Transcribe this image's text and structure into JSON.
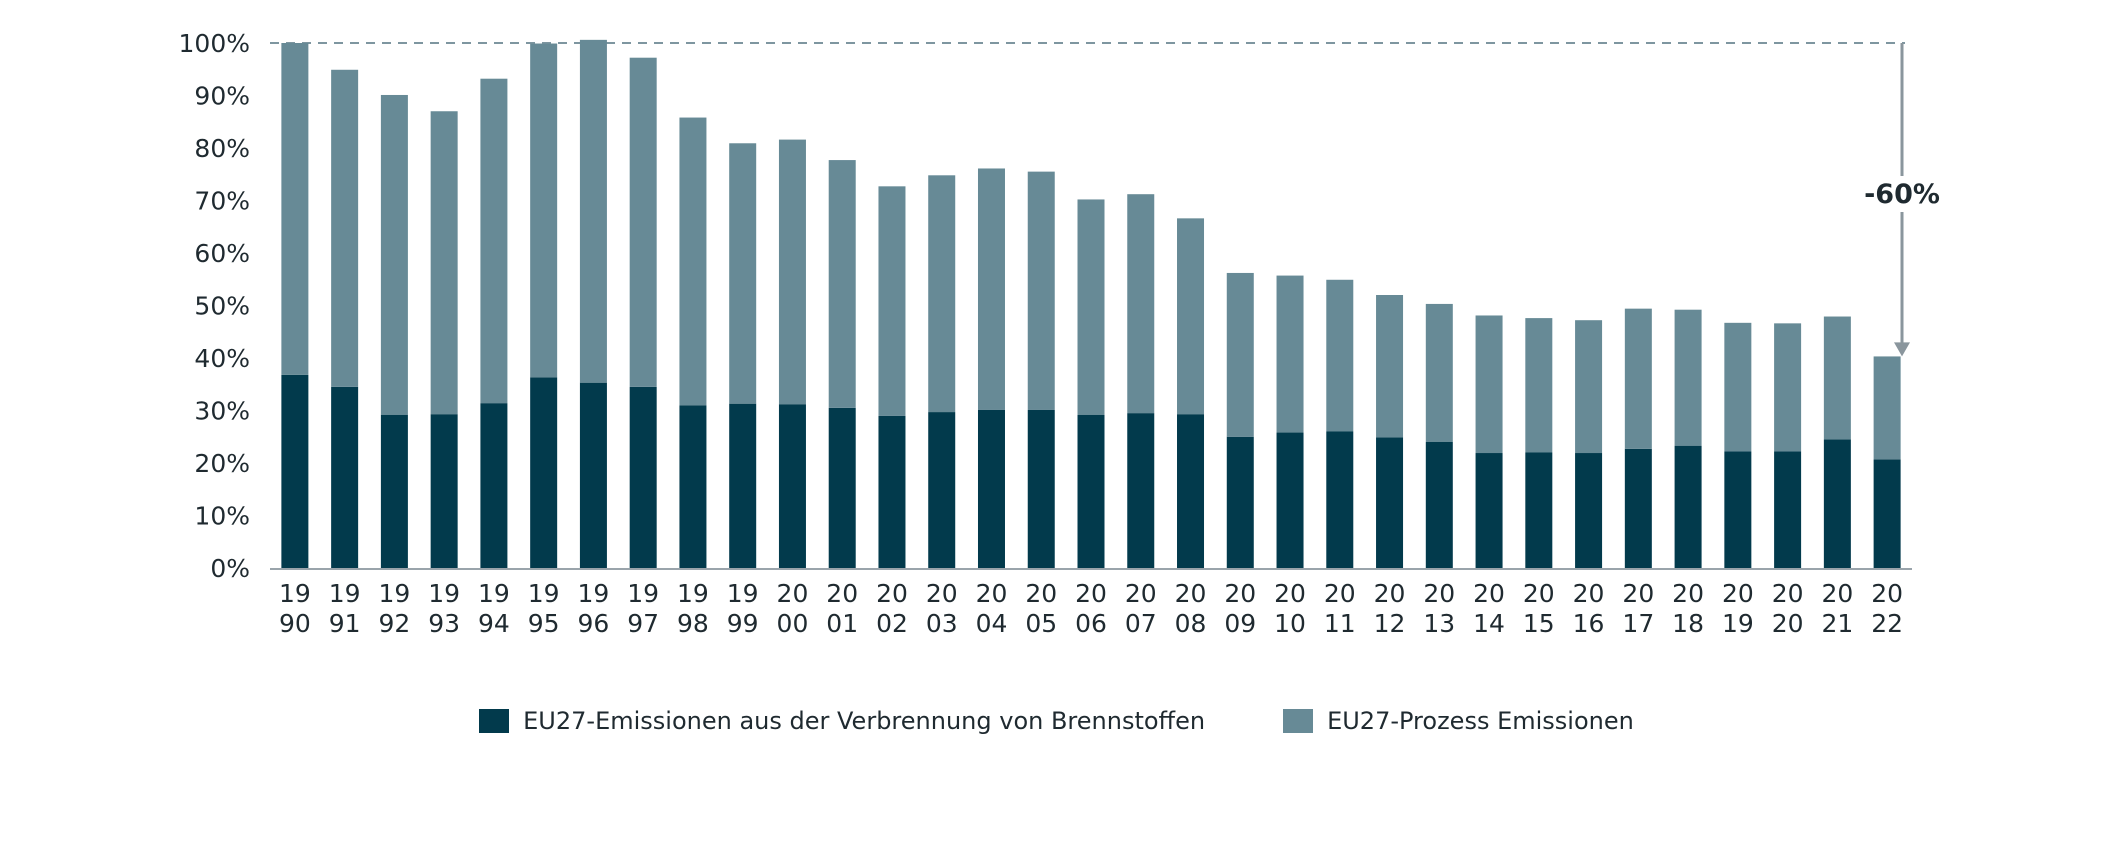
{
  "chart_data": {
    "type": "bar",
    "stacked": true,
    "title": "",
    "xlabel": "",
    "ylabel": "",
    "ylim": [
      0,
      100
    ],
    "y_ticks": [
      "0%",
      "10%",
      "20%",
      "30%",
      "40%",
      "50%",
      "60%",
      "70%",
      "80%",
      "90%",
      "100%"
    ],
    "categories": [
      "1990",
      "1991",
      "1992",
      "1993",
      "1994",
      "1995",
      "1996",
      "1997",
      "1998",
      "1999",
      "2000",
      "2001",
      "2002",
      "2003",
      "2004",
      "2005",
      "2006",
      "2007",
      "2008",
      "2009",
      "2010",
      "2011",
      "2012",
      "2013",
      "2014",
      "2015",
      "2016",
      "2017",
      "2018",
      "2019",
      "2020",
      "2021",
      "2022"
    ],
    "category_labels": [
      [
        "19",
        "90"
      ],
      [
        "19",
        "91"
      ],
      [
        "19",
        "92"
      ],
      [
        "19",
        "93"
      ],
      [
        "19",
        "94"
      ],
      [
        "19",
        "95"
      ],
      [
        "19",
        "96"
      ],
      [
        "19",
        "97"
      ],
      [
        "19",
        "98"
      ],
      [
        "19",
        "99"
      ],
      [
        "20",
        "00"
      ],
      [
        "20",
        "01"
      ],
      [
        "20",
        "02"
      ],
      [
        "20",
        "03"
      ],
      [
        "20",
        "04"
      ],
      [
        "20",
        "05"
      ],
      [
        "20",
        "06"
      ],
      [
        "20",
        "07"
      ],
      [
        "20",
        "08"
      ],
      [
        "20",
        "09"
      ],
      [
        "20",
        "10"
      ],
      [
        "20",
        "11"
      ],
      [
        "20",
        "12"
      ],
      [
        "20",
        "13"
      ],
      [
        "20",
        "14"
      ],
      [
        "20",
        "15"
      ],
      [
        "20",
        "16"
      ],
      [
        "20",
        "17"
      ],
      [
        "20",
        "18"
      ],
      [
        "20",
        "19"
      ],
      [
        "20",
        "20"
      ],
      [
        "20",
        "21"
      ],
      [
        "20",
        "22"
      ]
    ],
    "series": [
      {
        "name": "EU27-Emissionen aus der Verbrennung von Brennstoffen",
        "color": "#023A4C",
        "values": [
          36.8,
          34.5,
          29.2,
          29.3,
          31.4,
          36.3,
          35.3,
          34.5,
          31.0,
          31.3,
          31.2,
          30.5,
          29.0,
          29.7,
          30.1,
          30.1,
          29.2,
          29.5,
          29.3,
          25.0,
          25.8,
          26.0,
          24.9,
          24.0,
          21.9,
          22.0,
          21.9,
          22.7,
          23.3,
          22.2,
          22.2,
          24.5,
          20.7
        ]
      },
      {
        "name": "EU27-Prozess Emissionen",
        "color": "#678A96",
        "values": [
          63.2,
          60.4,
          60.9,
          57.7,
          61.8,
          63.6,
          65.3,
          62.7,
          54.8,
          49.6,
          50.4,
          47.2,
          43.7,
          45.1,
          46.0,
          45.4,
          41.0,
          41.7,
          37.3,
          31.2,
          29.9,
          28.9,
          27.1,
          26.3,
          26.2,
          25.6,
          25.3,
          26.7,
          25.9,
          24.5,
          24.4,
          23.4,
          19.6
        ]
      }
    ],
    "reference_line": {
      "value": 100,
      "style": "dashed"
    },
    "annotation": {
      "text": "-60%",
      "from": 100,
      "to": 40.3
    },
    "legend_position": "bottom-center"
  }
}
